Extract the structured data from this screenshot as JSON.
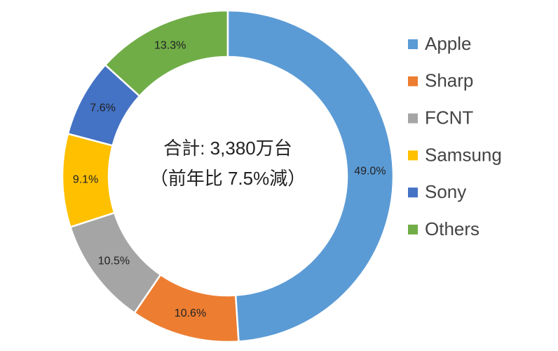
{
  "chart_data": {
    "type": "doughnut",
    "center_text": [
      "合計: 3,380万台",
      "（前年比 7.5%減）"
    ],
    "categories": [
      "Apple",
      "Sharp",
      "FCNT",
      "Samsung",
      "Sony",
      "Others"
    ],
    "values": [
      49.0,
      10.6,
      10.5,
      9.1,
      7.6,
      13.3
    ],
    "value_labels": [
      "49.0%",
      "10.6%",
      "10.5%",
      "9.1%",
      "7.6%",
      "13.3%"
    ],
    "colors": [
      "#5b9bd5",
      "#ed7d31",
      "#a5a5a5",
      "#ffc000",
      "#4472c4",
      "#70ad47"
    ],
    "legend": "right"
  }
}
